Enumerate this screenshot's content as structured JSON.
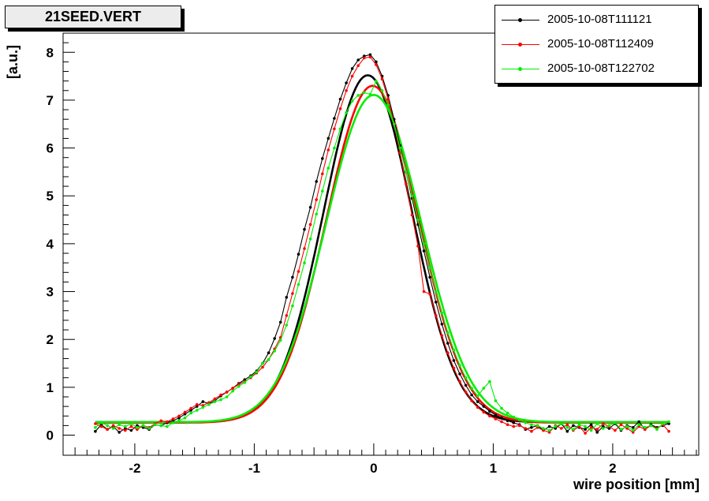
{
  "title": "21SEED.VERT",
  "legend": [
    {
      "label": "2005-10-08T111121",
      "color": "#000000"
    },
    {
      "label": "2005-10-08T112409",
      "color": "#ff0000"
    },
    {
      "label": "2005-10-08T122702",
      "color": "#00ee00"
    }
  ],
  "chart_data": {
    "type": "line",
    "title": "21SEED.VERT",
    "xlabel": "wire position [mm]",
    "ylabel": "[a.u.]",
    "xlim": [
      -2.6,
      2.72
    ],
    "ylim": [
      -0.42,
      8.4
    ],
    "xticks": [
      -2,
      -1,
      0,
      1,
      2
    ],
    "yticks": [
      0,
      1,
      2,
      3,
      4,
      5,
      6,
      7,
      8
    ],
    "grid": false,
    "legend_position": "top-right",
    "series": [
      {
        "name": "2005-10-08T111121",
        "color": "#000000",
        "x": [
          -2.33,
          -2.28,
          -2.23,
          -2.18,
          -2.13,
          -2.08,
          -2.03,
          -1.98,
          -1.93,
          -1.88,
          -1.83,
          -1.78,
          -1.73,
          -1.68,
          -1.63,
          -1.58,
          -1.53,
          -1.48,
          -1.43,
          -1.38,
          -1.33,
          -1.28,
          -1.23,
          -1.18,
          -1.13,
          -1.08,
          -1.03,
          -0.98,
          -0.93,
          -0.88,
          -0.83,
          -0.78,
          -0.73,
          -0.68,
          -0.63,
          -0.58,
          -0.53,
          -0.48,
          -0.43,
          -0.38,
          -0.33,
          -0.28,
          -0.23,
          -0.18,
          -0.13,
          -0.08,
          -0.03,
          0.02,
          0.07,
          0.12,
          0.17,
          0.22,
          0.27,
          0.32,
          0.37,
          0.42,
          0.47,
          0.52,
          0.57,
          0.62,
          0.67,
          0.72,
          0.77,
          0.82,
          0.87,
          0.92,
          0.97,
          1.02,
          1.07,
          1.12,
          1.17,
          1.22,
          1.27,
          1.32,
          1.37,
          1.42,
          1.47,
          1.52,
          1.57,
          1.62,
          1.67,
          1.72,
          1.77,
          1.82,
          1.87,
          1.92,
          1.97,
          2.02,
          2.07,
          2.12,
          2.17,
          2.22,
          2.27,
          2.32,
          2.37,
          2.42,
          2.47
        ],
        "y": [
          0.08,
          0.22,
          0.12,
          0.18,
          0.06,
          0.14,
          0.1,
          0.2,
          0.16,
          0.12,
          0.22,
          0.2,
          0.26,
          0.3,
          0.36,
          0.44,
          0.52,
          0.6,
          0.7,
          0.66,
          0.72,
          0.82,
          0.9,
          0.98,
          1.08,
          1.16,
          1.24,
          1.34,
          1.5,
          1.72,
          2.02,
          2.36,
          2.88,
          3.3,
          3.78,
          4.3,
          4.76,
          5.3,
          5.78,
          6.2,
          6.62,
          7.02,
          7.36,
          7.66,
          7.84,
          7.92,
          7.95,
          7.8,
          7.5,
          7.1,
          6.6,
          6.05,
          5.5,
          4.95,
          4.4,
          3.85,
          3.3,
          2.78,
          2.32,
          1.92,
          1.56,
          1.28,
          1.04,
          0.84,
          0.7,
          0.6,
          0.5,
          0.42,
          0.36,
          0.3,
          0.26,
          0.22,
          0.12,
          0.16,
          0.2,
          0.1,
          0.18,
          0.14,
          0.24,
          0.08,
          0.2,
          0.16,
          0.12,
          0.22,
          0.06,
          0.18,
          0.14,
          0.24,
          0.1,
          0.2,
          0.16,
          0.28,
          0.12,
          0.22,
          0.16,
          0.2,
          0.24
        ]
      },
      {
        "name": "2005-10-08T112409",
        "color": "#ff0000",
        "x": [
          -2.33,
          -2.28,
          -2.23,
          -2.18,
          -2.13,
          -2.08,
          -2.03,
          -1.98,
          -1.93,
          -1.88,
          -1.83,
          -1.78,
          -1.73,
          -1.68,
          -1.63,
          -1.58,
          -1.53,
          -1.48,
          -1.43,
          -1.38,
          -1.33,
          -1.28,
          -1.23,
          -1.18,
          -1.13,
          -1.08,
          -1.03,
          -0.98,
          -0.93,
          -0.88,
          -0.83,
          -0.78,
          -0.73,
          -0.68,
          -0.63,
          -0.58,
          -0.53,
          -0.48,
          -0.43,
          -0.38,
          -0.33,
          -0.28,
          -0.23,
          -0.18,
          -0.13,
          -0.08,
          -0.03,
          0.02,
          0.07,
          0.12,
          0.17,
          0.22,
          0.27,
          0.32,
          0.37,
          0.42,
          0.47,
          0.52,
          0.57,
          0.62,
          0.67,
          0.72,
          0.77,
          0.82,
          0.87,
          0.92,
          0.97,
          1.02,
          1.07,
          1.12,
          1.17,
          1.22,
          1.27,
          1.32,
          1.37,
          1.42,
          1.47,
          1.52,
          1.57,
          1.62,
          1.67,
          1.72,
          1.77,
          1.82,
          1.87,
          1.92,
          1.97,
          2.02,
          2.07,
          2.12,
          2.17,
          2.22,
          2.27,
          2.32,
          2.37,
          2.42,
          2.47
        ],
        "y": [
          0.24,
          0.18,
          0.12,
          0.2,
          0.14,
          0.1,
          0.18,
          0.12,
          0.2,
          0.16,
          0.24,
          0.3,
          0.28,
          0.34,
          0.4,
          0.48,
          0.56,
          0.64,
          0.62,
          0.68,
          0.76,
          0.84,
          0.9,
          0.98,
          1.06,
          1.12,
          1.2,
          1.3,
          1.42,
          1.58,
          1.8,
          2.04,
          2.5,
          2.96,
          3.42,
          3.9,
          4.4,
          4.92,
          5.46,
          5.96,
          6.4,
          6.82,
          7.2,
          7.5,
          7.72,
          7.88,
          7.9,
          7.74,
          7.44,
          7.02,
          6.5,
          5.9,
          5.25,
          4.6,
          3.95,
          3.0,
          2.95,
          2.5,
          2.08,
          1.72,
          1.4,
          1.12,
          0.9,
          0.72,
          0.58,
          0.48,
          0.4,
          0.34,
          0.28,
          0.22,
          0.18,
          0.2,
          0.14,
          0.08,
          0.16,
          0.1,
          0.06,
          0.2,
          0.14,
          0.22,
          0.1,
          0.18,
          0.04,
          0.16,
          0.12,
          0.24,
          0.18,
          0.1,
          0.22,
          0.14,
          0.06,
          0.18,
          0.12,
          0.2,
          0.14,
          0.22,
          0.08
        ]
      },
      {
        "name": "2005-10-08T122702",
        "color": "#00ee00",
        "x": [
          -2.33,
          -2.28,
          -2.23,
          -2.18,
          -2.13,
          -2.08,
          -2.03,
          -1.98,
          -1.93,
          -1.88,
          -1.83,
          -1.78,
          -1.73,
          -1.68,
          -1.63,
          -1.58,
          -1.53,
          -1.48,
          -1.43,
          -1.38,
          -1.33,
          -1.28,
          -1.23,
          -1.18,
          -1.13,
          -1.08,
          -1.03,
          -0.98,
          -0.93,
          -0.88,
          -0.83,
          -0.78,
          -0.73,
          -0.68,
          -0.63,
          -0.58,
          -0.53,
          -0.48,
          -0.43,
          -0.38,
          -0.33,
          -0.28,
          -0.23,
          -0.18,
          -0.13,
          -0.08,
          -0.03,
          0.02,
          0.07,
          0.12,
          0.17,
          0.22,
          0.27,
          0.32,
          0.37,
          0.42,
          0.47,
          0.52,
          0.57,
          0.62,
          0.67,
          0.72,
          0.77,
          0.82,
          0.87,
          0.92,
          0.97,
          1.02,
          1.07,
          1.12,
          1.17,
          1.22,
          1.27,
          1.32,
          1.37,
          1.42,
          1.47,
          1.52,
          1.57,
          1.62,
          1.67,
          1.72,
          1.77,
          1.82,
          1.87,
          1.92,
          1.97,
          2.02,
          2.07,
          2.12,
          2.17,
          2.22,
          2.27,
          2.32,
          2.37,
          2.42,
          2.47
        ],
        "y": [
          0.16,
          0.26,
          0.2,
          0.14,
          0.22,
          0.18,
          0.24,
          0.16,
          0.2,
          0.14,
          0.22,
          0.2,
          0.18,
          0.26,
          0.3,
          0.36,
          0.46,
          0.52,
          0.58,
          0.64,
          0.7,
          0.74,
          0.8,
          0.92,
          1.02,
          1.1,
          1.22,
          1.32,
          1.5,
          1.58,
          1.76,
          1.98,
          2.3,
          2.7,
          3.15,
          3.6,
          4.1,
          4.62,
          5.1,
          5.58,
          6.0,
          6.4,
          6.74,
          6.98,
          7.1,
          7.16,
          7.12,
          7.4,
          7.2,
          6.9,
          6.5,
          6.0,
          5.5,
          5.0,
          4.5,
          4.0,
          3.5,
          3.0,
          2.55,
          2.14,
          1.78,
          1.46,
          1.2,
          0.98,
          0.82,
          0.98,
          1.12,
          0.72,
          0.56,
          0.46,
          0.38,
          0.32,
          0.26,
          0.22,
          0.2,
          0.14,
          0.1,
          0.18,
          0.24,
          0.16,
          0.12,
          0.22,
          0.18,
          0.1,
          0.24,
          0.14,
          0.2,
          0.26,
          0.12,
          0.18,
          0.1,
          0.22,
          0.16,
          0.2,
          0.12,
          0.24,
          0.28
        ]
      }
    ],
    "fits": [
      {
        "series": "2005-10-08T111121",
        "color": "#000000",
        "amplitude": 7.25,
        "mean": -0.05,
        "sigma": 0.37,
        "offset": 0.27
      },
      {
        "series": "2005-10-08T112409",
        "color": "#ff0000",
        "amplitude": 7.04,
        "mean": -0.01,
        "sigma": 0.385,
        "offset": 0.26
      },
      {
        "series": "2005-10-08T122702",
        "color": "#00ee00",
        "amplitude": 6.84,
        "mean": 0.0,
        "sigma": 0.4,
        "offset": 0.27
      }
    ]
  }
}
